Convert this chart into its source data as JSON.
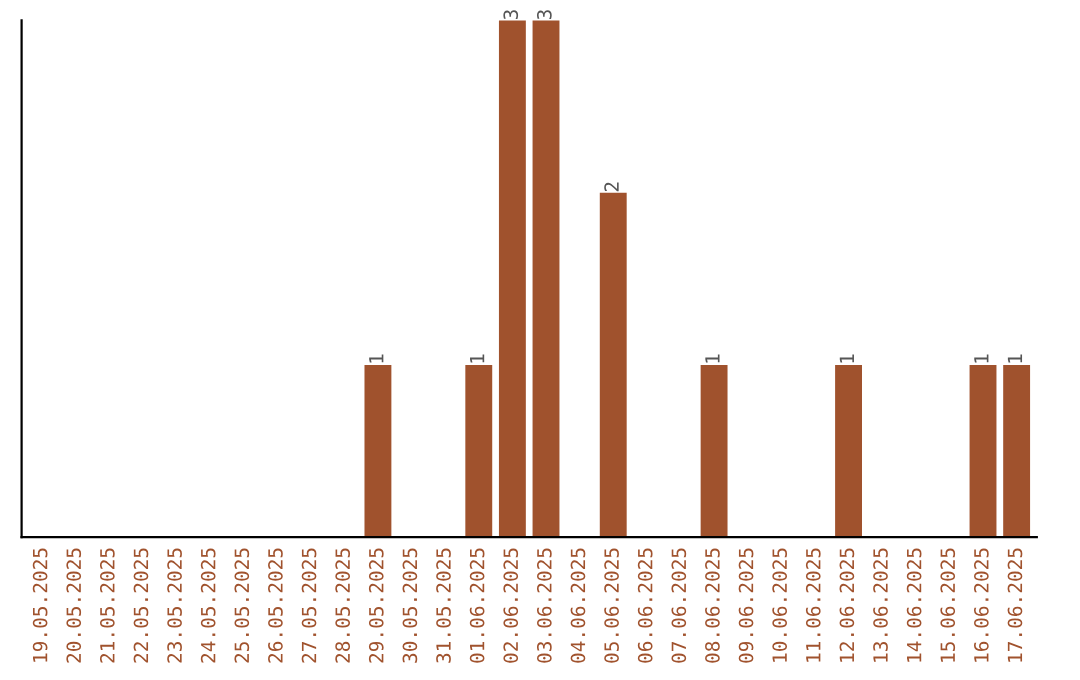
{
  "chart_data": {
    "type": "bar",
    "categories": [
      "19.05.2025",
      "20.05.2025",
      "21.05.2025",
      "22.05.2025",
      "23.05.2025",
      "24.05.2025",
      "25.05.2025",
      "26.05.2025",
      "27.05.2025",
      "28.05.2025",
      "29.05.2025",
      "30.05.2025",
      "31.05.2025",
      "01.06.2025",
      "02.06.2025",
      "03.06.2025",
      "04.06.2025",
      "05.06.2025",
      "06.06.2025",
      "07.06.2025",
      "08.06.2025",
      "09.06.2025",
      "10.06.2025",
      "11.06.2025",
      "12.06.2025",
      "13.06.2025",
      "14.06.2025",
      "15.06.2025",
      "16.06.2025",
      "17.06.2025"
    ],
    "values": [
      0,
      0,
      0,
      0,
      0,
      0,
      0,
      0,
      0,
      0,
      1,
      0,
      0,
      1,
      3,
      3,
      0,
      2,
      0,
      0,
      1,
      0,
      0,
      0,
      1,
      0,
      0,
      0,
      1,
      1
    ],
    "color": "#a0522d",
    "value_labels": [
      null,
      null,
      null,
      null,
      null,
      null,
      null,
      null,
      null,
      null,
      "1",
      null,
      null,
      "1",
      "3",
      "3",
      null,
      "2",
      null,
      null,
      "1",
      null,
      null,
      null,
      "1",
      null,
      null,
      null,
      "1",
      "1"
    ],
    "tick_labels": "x",
    "grid": false,
    "legend": false
  }
}
